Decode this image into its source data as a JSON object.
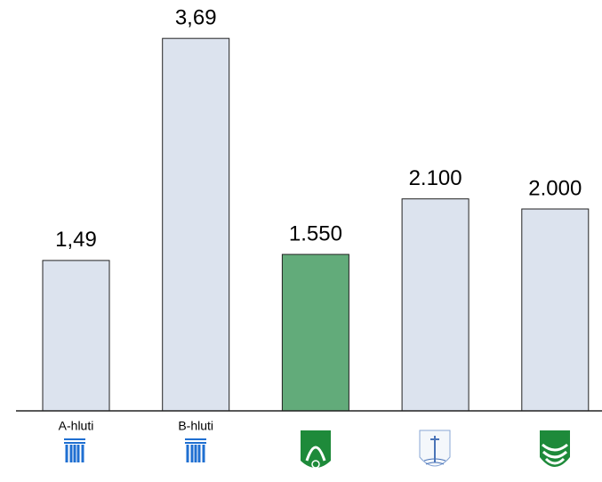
{
  "chart_data": {
    "type": "bar",
    "categories": [
      "A-hluti",
      "B-hluti",
      null,
      null,
      null
    ],
    "values": [
      1.49,
      3.69,
      1.55,
      2.1,
      2.0
    ],
    "value_labels": [
      "1,49",
      "3,69",
      "1.550",
      "2.100",
      "2.000"
    ],
    "colors": [
      "#dce3ee",
      "#dce3ee",
      "#62ab7a",
      "#dce3ee",
      "#dce3ee"
    ],
    "ylim": [
      0,
      4
    ]
  }
}
